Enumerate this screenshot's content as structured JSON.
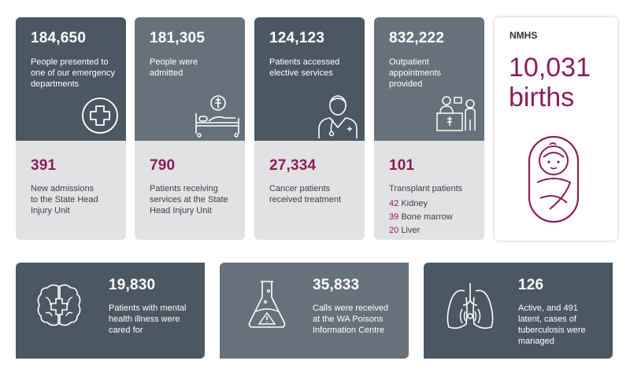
{
  "stats_top": [
    {
      "number": "184,650",
      "label": [
        "People presented to",
        "one of our emergency",
        "departments"
      ],
      "icon": "medical-cross-icon"
    },
    {
      "number": "181,305",
      "label": [
        "People were",
        "admitted"
      ],
      "icon": "hospital-bed-icon"
    },
    {
      "number": "124,123",
      "label": [
        "Patients accessed",
        "elective services"
      ],
      "icon": "doctor-icon"
    },
    {
      "number": "832,222",
      "label": [
        "Outpatient",
        "appointments",
        "provided"
      ],
      "icon": "reception-desk-icon"
    }
  ],
  "stats_bottom": [
    {
      "number": "391",
      "label": [
        "New admissions",
        "to the State Head",
        "Injury Unit"
      ]
    },
    {
      "number": "790",
      "label": [
        "Patients receiving",
        "services at the State",
        "Head Injury Unit"
      ]
    },
    {
      "number": "27,334",
      "label": [
        "Cancer patients",
        "received treatment"
      ]
    },
    {
      "number": "101",
      "label": [
        "Transplant patients"
      ],
      "breakdown": [
        {
          "count": "42",
          "name": "Kidney"
        },
        {
          "count": "39",
          "name": "Bone marrow"
        },
        {
          "count": "20",
          "name": "Liver"
        }
      ]
    }
  ],
  "nmhs": {
    "heading": "NMHS",
    "number": "10,031",
    "unit": "births",
    "icon": "swaddled-baby-icon"
  },
  "stats_wide": [
    {
      "number": "19,830",
      "label": [
        "Patients with mental",
        "health illness were",
        "cared for"
      ],
      "icon": "brain-icon"
    },
    {
      "number": "35,833",
      "label": [
        "Calls were received",
        "at the WA Poisons",
        "Information Centre"
      ],
      "icon": "poison-flask-icon"
    },
    {
      "number": "126",
      "label": [
        "Active, and 491",
        "latent, cases of",
        "tuberculosis were",
        "managed"
      ],
      "icon": "lungs-icon"
    }
  ]
}
